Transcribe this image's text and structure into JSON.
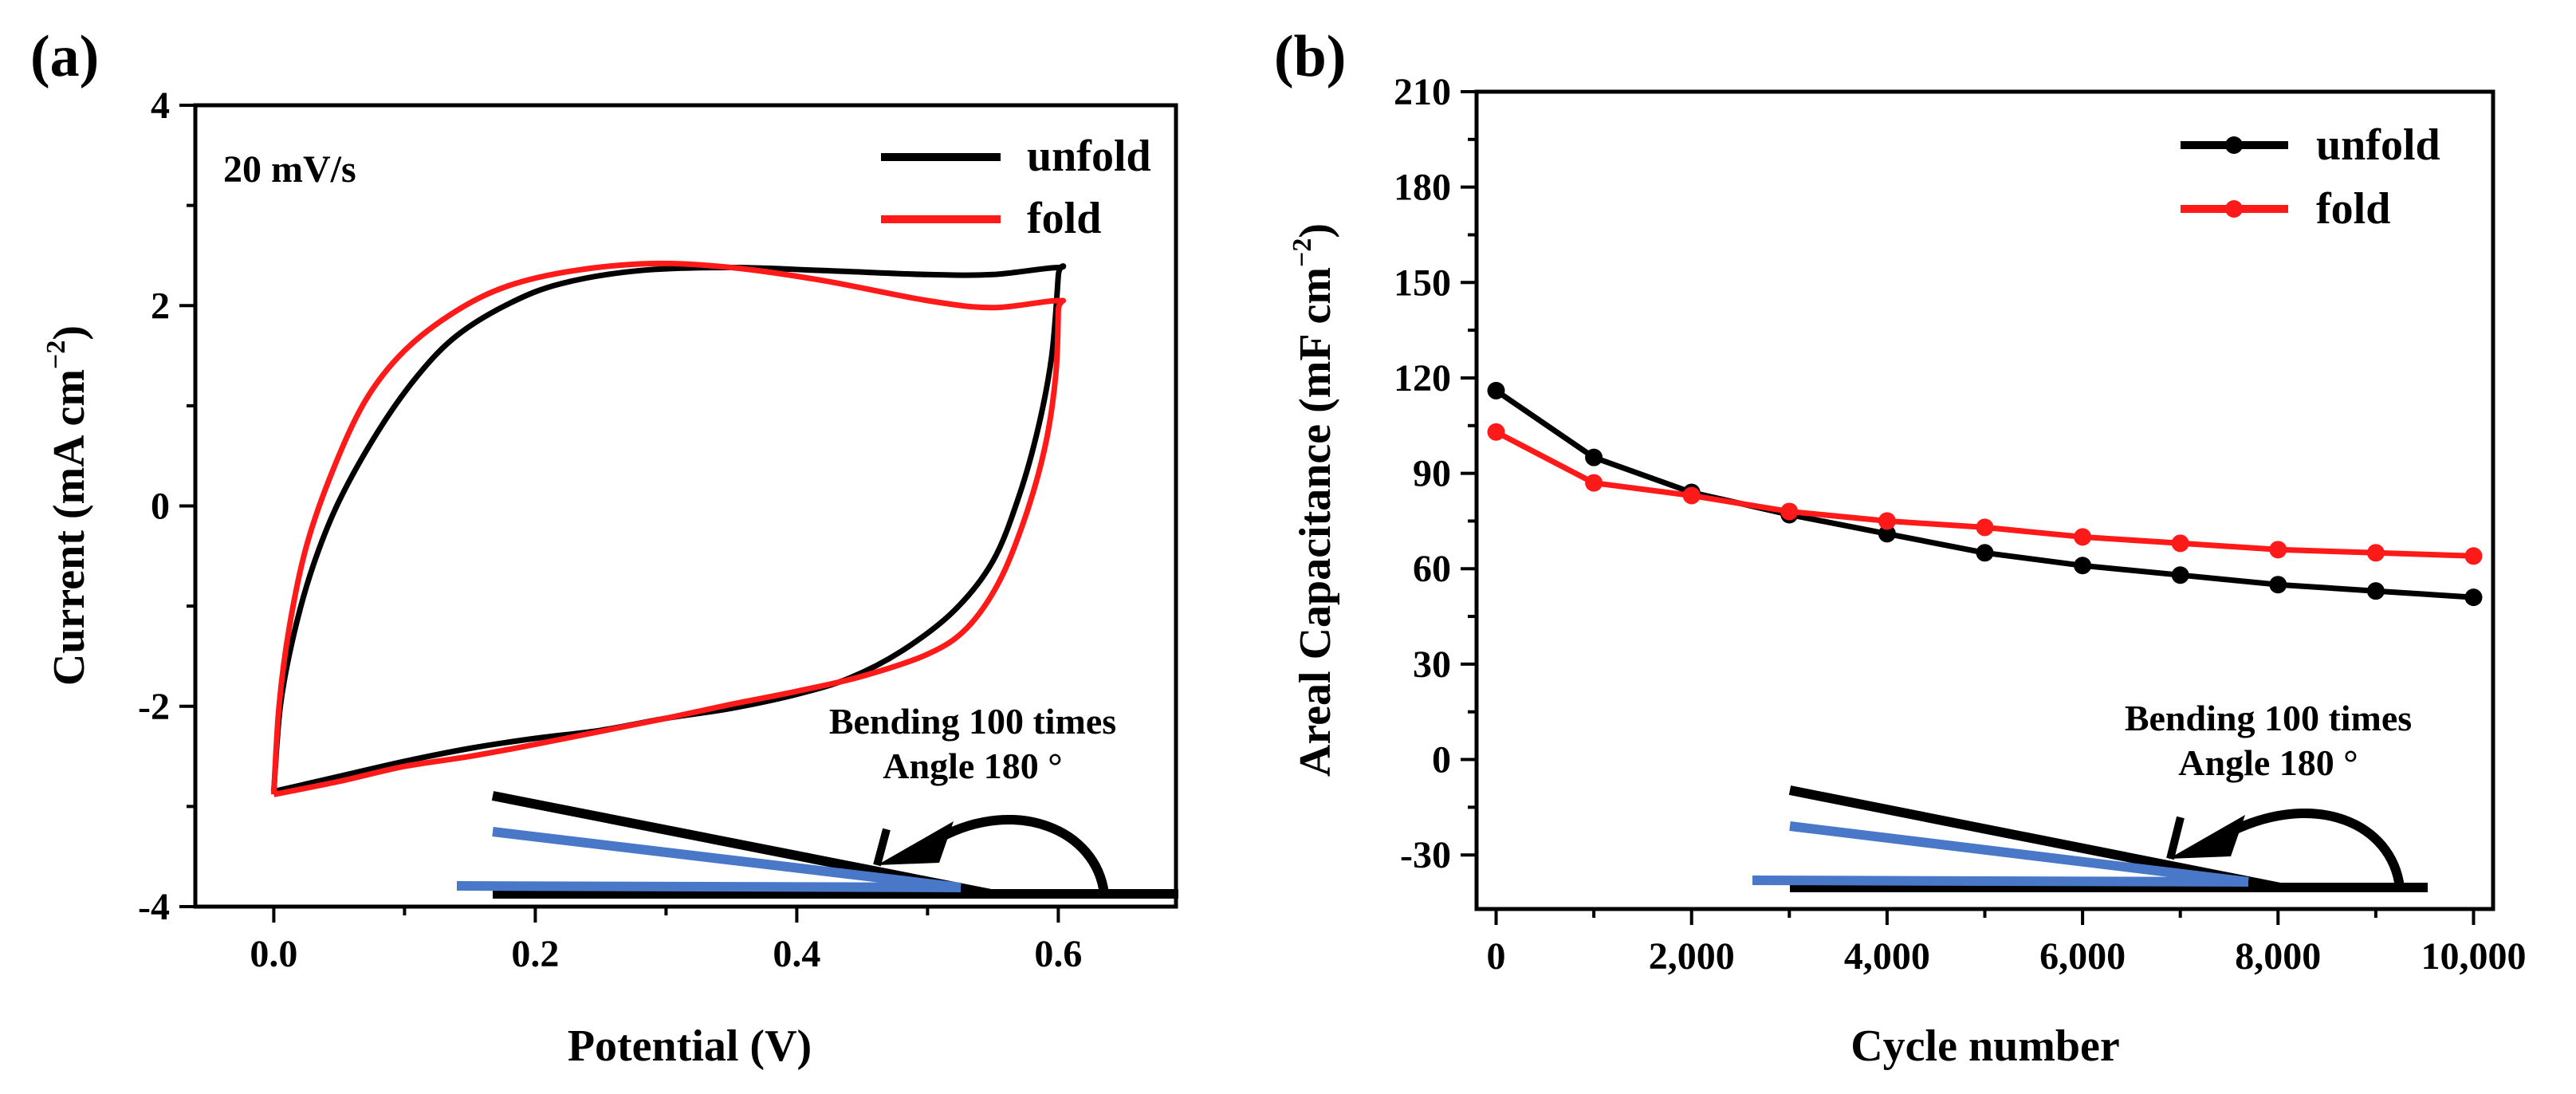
{
  "chart_data": [
    {
      "type": "line",
      "panel_label": "(a)",
      "xlabel": "Potential (V)",
      "ylabel_main": "Current (mA cm",
      "ylabel_sup": "−2",
      "ylabel_close": ")",
      "xlim": [
        -0.06,
        0.69
      ],
      "ylim": [
        -4,
        4
      ],
      "xticks": [
        0.0,
        0.2,
        0.4,
        0.6
      ],
      "xtick_labels": [
        "0.0",
        "0.2",
        "0.4",
        "0.6"
      ],
      "yticks": [
        -4,
        -2,
        0,
        2,
        4
      ],
      "ytick_labels": [
        "-4",
        "-2",
        "0",
        "2",
        "4"
      ],
      "scan_rate": "20 mV/s",
      "annotation_line1": "Bending 100 times",
      "annotation_line2": "Angle 180 °",
      "legend_position": "top-right",
      "series": [
        {
          "name": "unfold",
          "color": "#000000",
          "points": [
            [
              0.0,
              -2.85
            ],
            [
              0.005,
              -2.0
            ],
            [
              0.015,
              -1.3
            ],
            [
              0.03,
              -0.6
            ],
            [
              0.05,
              0.05
            ],
            [
              0.08,
              0.75
            ],
            [
              0.11,
              1.3
            ],
            [
              0.14,
              1.7
            ],
            [
              0.18,
              2.02
            ],
            [
              0.22,
              2.22
            ],
            [
              0.28,
              2.35
            ],
            [
              0.35,
              2.38
            ],
            [
              0.42,
              2.35
            ],
            [
              0.5,
              2.31
            ],
            [
              0.55,
              2.31
            ],
            [
              0.6,
              2.38
            ],
            [
              0.6,
              2.3
            ],
            [
              0.595,
              1.5
            ],
            [
              0.585,
              0.8
            ],
            [
              0.57,
              0.1
            ],
            [
              0.55,
              -0.55
            ],
            [
              0.52,
              -1.05
            ],
            [
              0.48,
              -1.45
            ],
            [
              0.44,
              -1.72
            ],
            [
              0.4,
              -1.88
            ],
            [
              0.35,
              -2.02
            ],
            [
              0.3,
              -2.12
            ],
            [
              0.25,
              -2.24
            ],
            [
              0.2,
              -2.32
            ],
            [
              0.15,
              -2.42
            ],
            [
              0.1,
              -2.55
            ],
            [
              0.05,
              -2.7
            ],
            [
              0.0,
              -2.85
            ]
          ]
        },
        {
          "name": "fold",
          "color": "#ff1a1a",
          "points": [
            [
              0.0,
              -2.88
            ],
            [
              0.004,
              -2.0
            ],
            [
              0.012,
              -1.2
            ],
            [
              0.025,
              -0.4
            ],
            [
              0.045,
              0.35
            ],
            [
              0.07,
              1.05
            ],
            [
              0.1,
              1.55
            ],
            [
              0.14,
              1.95
            ],
            [
              0.18,
              2.2
            ],
            [
              0.23,
              2.35
            ],
            [
              0.29,
              2.42
            ],
            [
              0.35,
              2.38
            ],
            [
              0.42,
              2.25
            ],
            [
              0.5,
              2.05
            ],
            [
              0.55,
              1.98
            ],
            [
              0.6,
              2.05
            ],
            [
              0.6,
              1.95
            ],
            [
              0.598,
              1.3
            ],
            [
              0.59,
              0.6
            ],
            [
              0.575,
              -0.1
            ],
            [
              0.555,
              -0.75
            ],
            [
              0.53,
              -1.22
            ],
            [
              0.5,
              -1.48
            ],
            [
              0.45,
              -1.7
            ],
            [
              0.4,
              -1.85
            ],
            [
              0.35,
              -1.98
            ],
            [
              0.3,
              -2.12
            ],
            [
              0.25,
              -2.25
            ],
            [
              0.2,
              -2.38
            ],
            [
              0.15,
              -2.5
            ],
            [
              0.1,
              -2.6
            ],
            [
              0.05,
              -2.75
            ],
            [
              0.0,
              -2.88
            ]
          ]
        }
      ]
    },
    {
      "type": "line",
      "panel_label": "(b)",
      "xlabel": "Cycle number",
      "ylabel_main": "Areal Capacitance (mF cm",
      "ylabel_sup": "−2",
      "ylabel_close": ")",
      "xlim": [
        -200,
        10200
      ],
      "ylim": [
        -47,
        210
      ],
      "xticks": [
        0,
        2000,
        4000,
        6000,
        8000,
        10000
      ],
      "xtick_labels": [
        "0",
        "2,000",
        "4,000",
        "6,000",
        "8,000",
        "10,000"
      ],
      "yticks": [
        -30,
        0,
        30,
        60,
        90,
        120,
        150,
        180,
        210
      ],
      "ytick_labels": [
        "-30",
        "0",
        "30",
        "60",
        "90",
        "120",
        "150",
        "180",
        "210"
      ],
      "annotation_line1": "Bending 100 times",
      "annotation_line2": "Angle 180 °",
      "legend_position": "top-right",
      "series": [
        {
          "name": "unfold",
          "color": "#000000",
          "x": [
            0,
            1000,
            2000,
            3000,
            4000,
            5000,
            6000,
            7000,
            8000,
            9000,
            10000
          ],
          "values": [
            116,
            95,
            84,
            77,
            71,
            65,
            61,
            58,
            55,
            53,
            51
          ]
        },
        {
          "name": "fold",
          "color": "#ff1a1a",
          "x": [
            0,
            1000,
            2000,
            3000,
            4000,
            5000,
            6000,
            7000,
            8000,
            9000,
            10000
          ],
          "values": [
            103,
            87,
            83,
            78,
            75,
            73,
            70,
            68,
            66,
            65,
            64
          ]
        }
      ]
    }
  ]
}
